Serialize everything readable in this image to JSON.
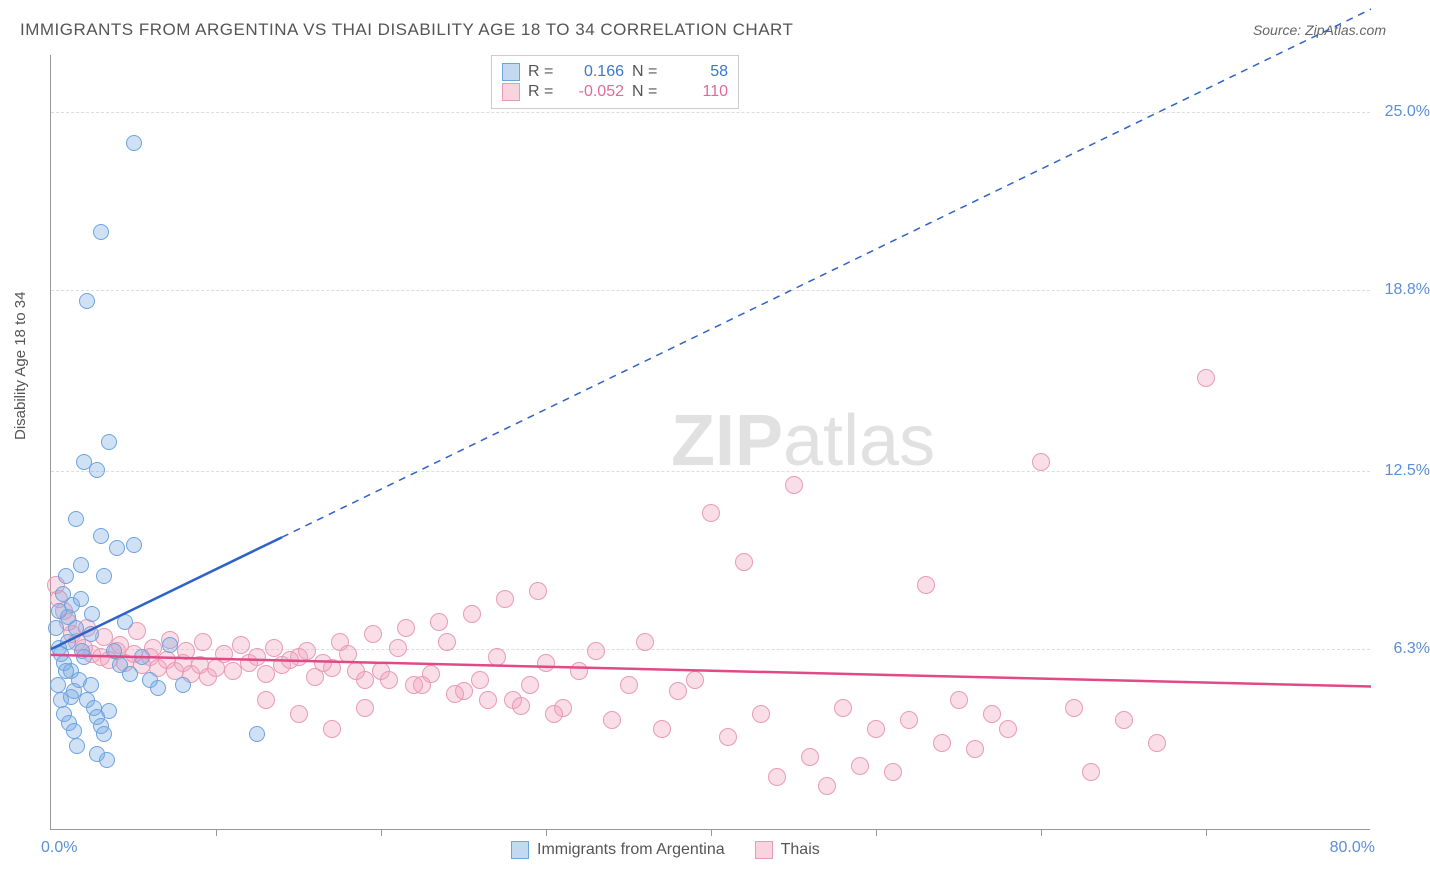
{
  "title": "IMMIGRANTS FROM ARGENTINA VS THAI DISABILITY AGE 18 TO 34 CORRELATION CHART",
  "source": "Source: ZipAtlas.com",
  "ylabel": "Disability Age 18 to 34",
  "watermark_bold": "ZIP",
  "watermark_light": "atlas",
  "chart": {
    "type": "scatter",
    "xlim": [
      0,
      80
    ],
    "ylim": [
      0,
      27
    ],
    "xticks_at": [
      10,
      20,
      30,
      40,
      50,
      60,
      70
    ],
    "yticks": [
      {
        "v": 25.0,
        "label": "25.0%"
      },
      {
        "v": 18.8,
        "label": "18.8%"
      },
      {
        "v": 12.5,
        "label": "12.5%"
      },
      {
        "v": 6.3,
        "label": "6.3%"
      }
    ],
    "xmin_label": "0.0%",
    "xmax_label": "80.0%",
    "grid_color": "#dddddd",
    "axis_color": "#999999",
    "background_color": "#ffffff",
    "series": [
      {
        "name": "Immigrants from Argentina",
        "color_fill": "rgba(120,170,225,0.35)",
        "color_stroke": "#6da3e0",
        "trend_color": "#2f62c9",
        "trend_solid": {
          "x1": 0,
          "y1": 6.3,
          "x2": 14,
          "y2": 10.2
        },
        "trend_dash": {
          "x1": 14,
          "y1": 10.2,
          "x2": 80,
          "y2": 28.6
        },
        "R": "0.166",
        "N": "58",
        "points": [
          [
            0.5,
            6.3
          ],
          [
            0.6,
            6.1
          ],
          [
            0.8,
            5.8
          ],
          [
            1.0,
            6.5
          ],
          [
            1.2,
            5.5
          ],
          [
            1.4,
            4.8
          ],
          [
            1.5,
            7.0
          ],
          [
            1.7,
            5.2
          ],
          [
            2.0,
            6.0
          ],
          [
            2.2,
            4.5
          ],
          [
            2.4,
            5.0
          ],
          [
            2.6,
            4.2
          ],
          [
            2.8,
            3.9
          ],
          [
            3.0,
            3.6
          ],
          [
            3.2,
            3.3
          ],
          [
            3.5,
            4.1
          ],
          [
            1.0,
            7.4
          ],
          [
            1.3,
            7.8
          ],
          [
            0.7,
            8.2
          ],
          [
            0.9,
            8.8
          ],
          [
            1.8,
            8.0
          ],
          [
            2.5,
            7.5
          ],
          [
            3.8,
            6.2
          ],
          [
            4.2,
            5.7
          ],
          [
            4.8,
            5.4
          ],
          [
            5.5,
            6.0
          ],
          [
            6.0,
            5.2
          ],
          [
            6.5,
            4.9
          ],
          [
            7.2,
            6.4
          ],
          [
            8.0,
            5.0
          ],
          [
            3.0,
            10.2
          ],
          [
            4.0,
            9.8
          ],
          [
            5.0,
            9.9
          ],
          [
            1.5,
            10.8
          ],
          [
            2.0,
            12.8
          ],
          [
            2.8,
            12.5
          ],
          [
            3.5,
            13.5
          ],
          [
            2.2,
            18.4
          ],
          [
            3.0,
            20.8
          ],
          [
            5.0,
            23.9
          ],
          [
            1.8,
            9.2
          ],
          [
            0.4,
            5.0
          ],
          [
            0.6,
            4.5
          ],
          [
            0.8,
            4.0
          ],
          [
            1.1,
            3.7
          ],
          [
            1.4,
            3.4
          ],
          [
            1.6,
            2.9
          ],
          [
            2.8,
            2.6
          ],
          [
            3.4,
            2.4
          ],
          [
            12.5,
            3.3
          ],
          [
            4.5,
            7.2
          ],
          [
            3.2,
            8.8
          ],
          [
            2.4,
            6.8
          ],
          [
            1.9,
            6.2
          ],
          [
            0.3,
            7.0
          ],
          [
            0.5,
            7.6
          ],
          [
            0.9,
            5.5
          ],
          [
            1.2,
            4.6
          ]
        ]
      },
      {
        "name": "Thais",
        "color_fill": "rgba(240,160,185,0.35)",
        "color_stroke": "#e89bb5",
        "trend_color": "#e04a86",
        "trend_solid": {
          "x1": 0,
          "y1": 6.1,
          "x2": 80,
          "y2": 5.0
        },
        "R": "-0.052",
        "N": "110",
        "points": [
          [
            0.3,
            8.5
          ],
          [
            0.5,
            8.0
          ],
          [
            0.8,
            7.6
          ],
          [
            1.0,
            7.2
          ],
          [
            1.3,
            6.8
          ],
          [
            1.6,
            6.5
          ],
          [
            2.0,
            6.3
          ],
          [
            2.5,
            6.1
          ],
          [
            3.0,
            6.0
          ],
          [
            3.5,
            5.9
          ],
          [
            4.0,
            6.2
          ],
          [
            4.5,
            5.8
          ],
          [
            5.0,
            6.1
          ],
          [
            5.5,
            5.7
          ],
          [
            6.0,
            6.0
          ],
          [
            6.5,
            5.6
          ],
          [
            7.0,
            5.9
          ],
          [
            7.5,
            5.5
          ],
          [
            8.0,
            5.8
          ],
          [
            8.5,
            5.4
          ],
          [
            9.0,
            5.7
          ],
          [
            9.5,
            5.3
          ],
          [
            10.0,
            5.6
          ],
          [
            11.0,
            5.5
          ],
          [
            12.0,
            5.8
          ],
          [
            13.0,
            5.4
          ],
          [
            14.0,
            5.7
          ],
          [
            15.0,
            6.0
          ],
          [
            16.0,
            5.3
          ],
          [
            17.0,
            5.6
          ],
          [
            18.0,
            6.1
          ],
          [
            19.0,
            5.2
          ],
          [
            20.0,
            5.5
          ],
          [
            21.0,
            6.3
          ],
          [
            22.0,
            5.0
          ],
          [
            23.0,
            5.4
          ],
          [
            24.0,
            6.5
          ],
          [
            25.0,
            4.8
          ],
          [
            26.0,
            5.2
          ],
          [
            27.0,
            6.0
          ],
          [
            28.0,
            4.5
          ],
          [
            29.0,
            5.0
          ],
          [
            30.0,
            5.8
          ],
          [
            31.0,
            4.2
          ],
          [
            32.0,
            5.5
          ],
          [
            33.0,
            6.2
          ],
          [
            34.0,
            3.8
          ],
          [
            35.0,
            5.0
          ],
          [
            36.0,
            6.5
          ],
          [
            37.0,
            3.5
          ],
          [
            38.0,
            4.8
          ],
          [
            39.0,
            5.2
          ],
          [
            40.0,
            11.0
          ],
          [
            41.0,
            3.2
          ],
          [
            42.0,
            9.3
          ],
          [
            43.0,
            4.0
          ],
          [
            44.0,
            1.8
          ],
          [
            45.0,
            12.0
          ],
          [
            46.0,
            2.5
          ],
          [
            47.0,
            1.5
          ],
          [
            48.0,
            4.2
          ],
          [
            49.0,
            2.2
          ],
          [
            50.0,
            3.5
          ],
          [
            51.0,
            2.0
          ],
          [
            52.0,
            3.8
          ],
          [
            53.0,
            8.5
          ],
          [
            54.0,
            3.0
          ],
          [
            55.0,
            4.5
          ],
          [
            56.0,
            2.8
          ],
          [
            57.0,
            4.0
          ],
          [
            58.0,
            3.5
          ],
          [
            60.0,
            12.8
          ],
          [
            62.0,
            4.2
          ],
          [
            63.0,
            2.0
          ],
          [
            65.0,
            3.8
          ],
          [
            67.0,
            3.0
          ],
          [
            70.0,
            15.7
          ],
          [
            2.2,
            7.0
          ],
          [
            3.2,
            6.7
          ],
          [
            4.2,
            6.4
          ],
          [
            5.2,
            6.9
          ],
          [
            6.2,
            6.3
          ],
          [
            7.2,
            6.6
          ],
          [
            8.2,
            6.2
          ],
          [
            9.2,
            6.5
          ],
          [
            10.5,
            6.1
          ],
          [
            11.5,
            6.4
          ],
          [
            12.5,
            6.0
          ],
          [
            13.5,
            6.3
          ],
          [
            14.5,
            5.9
          ],
          [
            15.5,
            6.2
          ],
          [
            16.5,
            5.8
          ],
          [
            17.5,
            6.5
          ],
          [
            18.5,
            5.5
          ],
          [
            19.5,
            6.8
          ],
          [
            20.5,
            5.2
          ],
          [
            21.5,
            7.0
          ],
          [
            22.5,
            5.0
          ],
          [
            23.5,
            7.2
          ],
          [
            24.5,
            4.7
          ],
          [
            25.5,
            7.5
          ],
          [
            26.5,
            4.5
          ],
          [
            27.5,
            8.0
          ],
          [
            28.5,
            4.3
          ],
          [
            29.5,
            8.3
          ],
          [
            30.5,
            4.0
          ],
          [
            13.0,
            4.5
          ],
          [
            15.0,
            4.0
          ],
          [
            17.0,
            3.5
          ],
          [
            19.0,
            4.2
          ]
        ]
      }
    ]
  },
  "legend_bottom": [
    {
      "swatch": "blue",
      "label": "Immigrants from Argentina"
    },
    {
      "swatch": "pink",
      "label": "Thais"
    }
  ]
}
